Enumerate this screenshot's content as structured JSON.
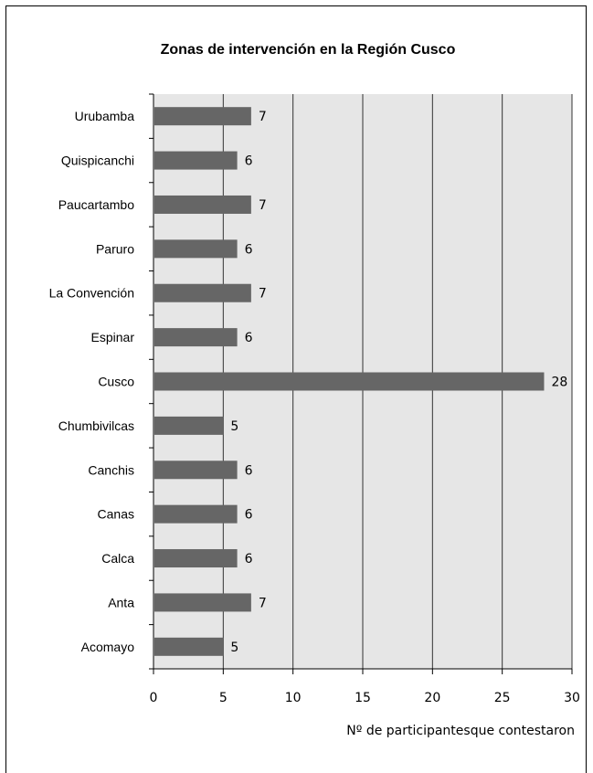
{
  "chart_data": {
    "type": "bar",
    "orientation": "horizontal",
    "title": "Zonas de intervención en  la Región Cusco",
    "xlabel": "Nº de participantesque contestaron",
    "ylabel": "",
    "categories": [
      "Urubamba",
      "Quispicanchi",
      "Paucartambo",
      "Paruro",
      "La Convención",
      "Espinar",
      "Cusco",
      "Chumbivilcas",
      "Canchis",
      "Canas",
      "Calca",
      "Anta",
      "Acomayo"
    ],
    "values": [
      7,
      6,
      7,
      6,
      7,
      6,
      28,
      5,
      6,
      6,
      6,
      7,
      5
    ],
    "xlim": [
      0,
      30
    ],
    "xticks": [
      "0",
      "5",
      "10",
      "15",
      "20",
      "25",
      "30"
    ],
    "grid": "vertical",
    "data_labels": true,
    "colors": {
      "bar": "#666666",
      "plot_background": "#e6e6e6",
      "gridline": "#333333"
    }
  }
}
